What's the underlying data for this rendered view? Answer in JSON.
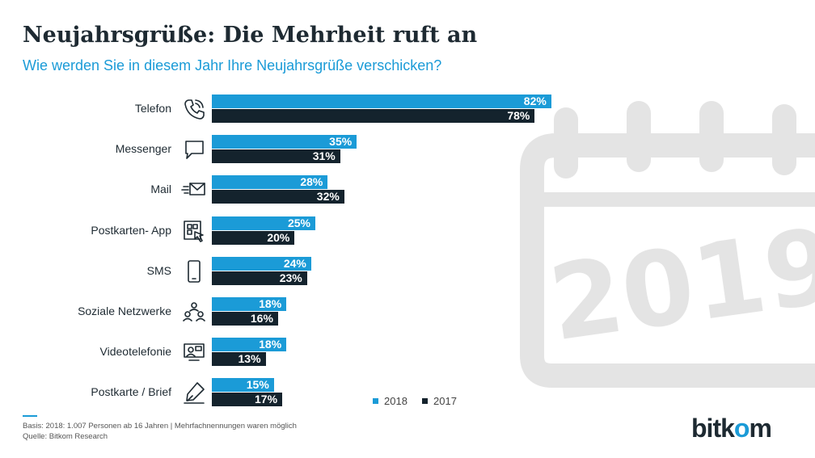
{
  "title": "Neujahrsgrüße: Die Mehrheit ruft an",
  "subtitle": "Wie werden Sie in diesem Jahr Ihre Neujahrsgrüße verschicken?",
  "colors": {
    "2018": "#1b9bd7",
    "2017": "#14232d",
    "text": "#1e2a32",
    "decor": "#e4e4e4"
  },
  "chart_data": {
    "type": "bar",
    "orientation": "horizontal",
    "categories": [
      "Telefon",
      "Messenger",
      "Mail",
      "Postkarten- App",
      "SMS",
      "Soziale Netzwerke",
      "Videotelefonie",
      "Postkarte / Brief"
    ],
    "category_icons": [
      "phone-icon",
      "speech-bubble-icon",
      "envelope-icon",
      "postcard-app-icon",
      "smartphone-icon",
      "network-icon",
      "video-call-icon",
      "pen-icon"
    ],
    "series": [
      {
        "name": "2018",
        "values": [
          82,
          35,
          28,
          25,
          24,
          18,
          18,
          15
        ],
        "labels": [
          "82%",
          "35%",
          "28%",
          "25%",
          "24%",
          "18%",
          "18%",
          "15%"
        ]
      },
      {
        "name": "2017",
        "values": [
          78,
          31,
          32,
          20,
          23,
          16,
          13,
          17
        ],
        "labels": [
          "78%",
          "31%",
          "32%",
          "20%",
          "23%",
          "16%",
          "13%",
          "17%"
        ]
      }
    ],
    "unit": "%",
    "legend_position": "bottom-right",
    "grid": false
  },
  "legend": {
    "items": [
      "2018",
      "2017"
    ]
  },
  "background_graphic": {
    "icon": "calendar-2019-icon",
    "year_text": "2019"
  },
  "footer": {
    "basis": "Basis: 2018: 1.007 Personen ab 16 Jahren | Mehrfachnennungen waren möglich",
    "source": "Quelle: Bitkom Research"
  },
  "logo": {
    "part1": "bitk",
    "part2": "o",
    "part3": "m"
  }
}
